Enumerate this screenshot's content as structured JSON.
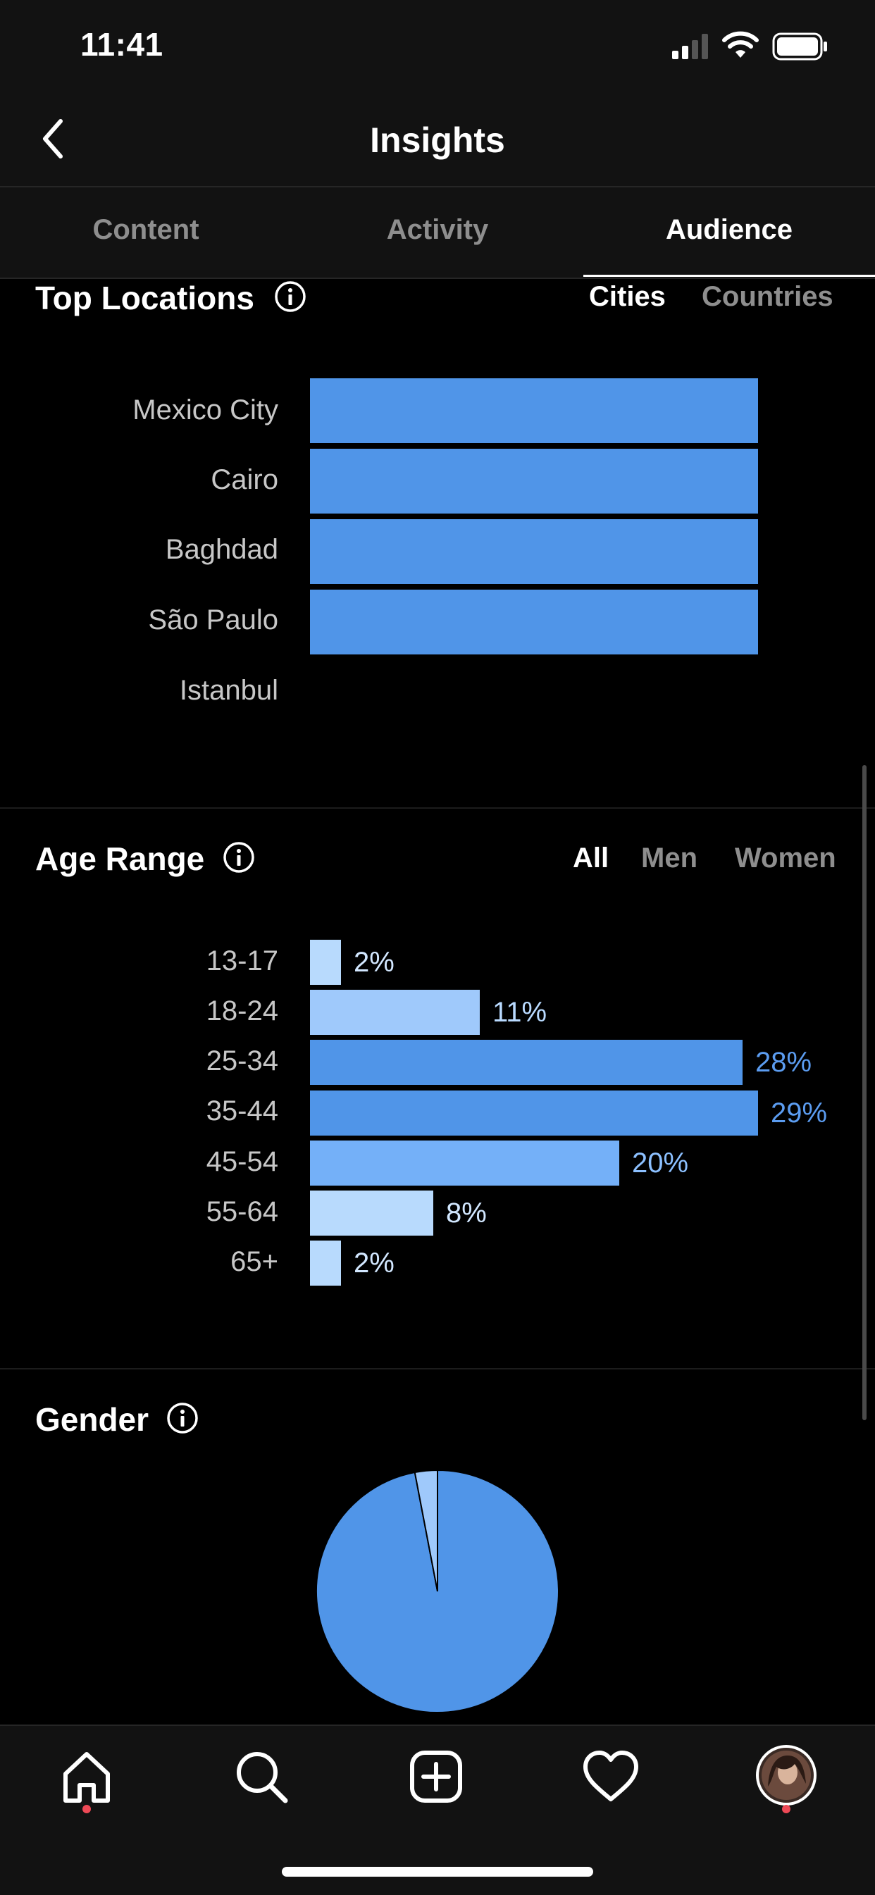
{
  "status_bar": {
    "time": "11:41"
  },
  "nav": {
    "title": "Insights"
  },
  "tabs": [
    {
      "label": "Content",
      "active": false
    },
    {
      "label": "Activity",
      "active": false
    },
    {
      "label": "Audience",
      "active": true
    }
  ],
  "top_locations": {
    "title": "Top Locations",
    "filters": [
      "Cities",
      "Countries"
    ],
    "active_filter": "Cities"
  },
  "age_range": {
    "title": "Age Range",
    "filters": [
      "All",
      "Men",
      "Women"
    ],
    "active_filter": "All"
  },
  "gender": {
    "title": "Gender"
  },
  "colors": {
    "accent": "#5095e8",
    "accent_light": "#9fc9fb",
    "background": "#000000",
    "bar_bg": "#121212",
    "muted": "#8e8e8e",
    "notification": "#ed4956"
  },
  "tab_bar": {
    "items": [
      "home-icon",
      "search-icon",
      "add-post-icon",
      "heart-icon",
      "profile-avatar"
    ]
  },
  "chart_data": [
    {
      "type": "bar",
      "orientation": "horizontal",
      "title": "Top Locations",
      "categories": [
        "Mexico City",
        "Cairo",
        "Baghdad",
        "São Paulo",
        "Istanbul"
      ],
      "values": [
        1,
        1,
        1,
        1,
        0
      ],
      "xlim": [
        0,
        1
      ]
    },
    {
      "type": "bar",
      "orientation": "horizontal",
      "title": "Age Range",
      "categories": [
        "13-17",
        "18-24",
        "25-34",
        "35-44",
        "45-54",
        "55-64",
        "65+"
      ],
      "values": [
        2,
        11,
        28,
        29,
        20,
        8,
        2
      ],
      "labels": [
        "2%",
        "11%",
        "28%",
        "29%",
        "20%",
        "8%",
        "2%"
      ],
      "xlim": [
        0,
        29
      ]
    },
    {
      "type": "pie",
      "title": "Gender",
      "values": [
        97,
        3
      ]
    }
  ]
}
